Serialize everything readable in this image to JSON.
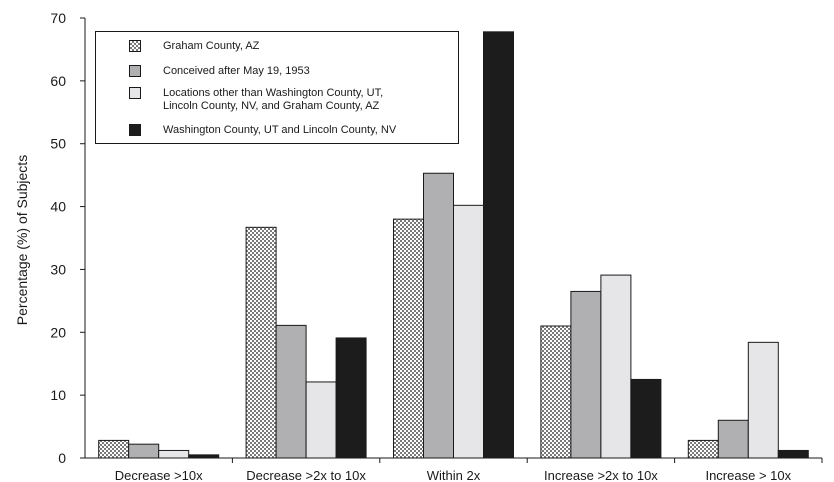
{
  "chart_data": {
    "type": "bar",
    "title": "",
    "xlabel": "",
    "ylabel": "Percentage (%) of Subjects",
    "ylim": [
      0,
      70
    ],
    "yticks": [
      0,
      10,
      20,
      30,
      40,
      50,
      60,
      70
    ],
    "grid": false,
    "legend_position": "top-left",
    "categories": [
      "Decrease >10x",
      "Decrease >2x to 10x",
      "Within 2x",
      "Increase >2x to 10x",
      "Increase > 10x"
    ],
    "series": [
      {
        "name": "Graham County, AZ",
        "fill": "pattern",
        "color": "#ffffff",
        "values": [
          2.8,
          36.7,
          38.0,
          21.0,
          2.8
        ]
      },
      {
        "name": "Conceived after May 19, 1953",
        "fill": "solid",
        "color": "#b0b0b3",
        "values": [
          2.2,
          21.1,
          45.3,
          26.5,
          6.0
        ]
      },
      {
        "name": "Locations other than Washington County, UT,\nLincoln County, NV, and Graham County, AZ",
        "fill": "solid",
        "color": "#e6e6e8",
        "values": [
          1.2,
          12.1,
          40.2,
          29.1,
          18.4
        ]
      },
      {
        "name": "Washington County, UT and Lincoln County, NV",
        "fill": "solid",
        "color": "#1c1c1c",
        "values": [
          0.5,
          19.1,
          67.8,
          12.5,
          1.2
        ]
      }
    ]
  }
}
